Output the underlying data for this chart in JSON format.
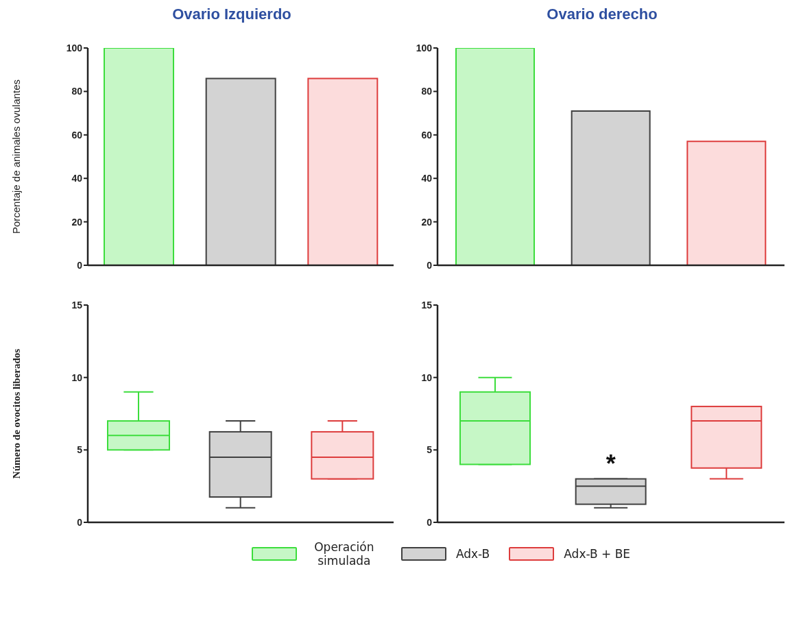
{
  "chart_data": [
    {
      "type": "bar",
      "title": "Ovario Izquierdo",
      "ylabel": "Porcentaje de animales ovulantes",
      "categories": [
        null,
        null,
        null
      ],
      "values": [
        100,
        86,
        86
      ],
      "colors": [
        "#c6f7c6",
        "#d3d3d3",
        "#fcdcdc"
      ],
      "ylim": [
        0,
        100
      ],
      "yticks": [
        0,
        20,
        40,
        60,
        80,
        100
      ],
      "grid": false
    },
    {
      "type": "bar",
      "title": "Ovario derecho",
      "categories": [
        null,
        null,
        null
      ],
      "values": [
        100,
        71,
        57
      ],
      "colors": [
        "#c6f7c6",
        "#d3d3d3",
        "#fcdcdc"
      ],
      "ylim": [
        0,
        100
      ],
      "yticks": [
        0,
        20,
        40,
        60,
        80,
        100
      ],
      "grid": false
    },
    {
      "type": "box",
      "ylabel": "Número de ovocitos liberados",
      "categories": [
        null,
        null,
        null
      ],
      "ylim": [
        0,
        15
      ],
      "yticks": [
        0,
        5,
        10,
        15
      ],
      "grid": false,
      "legend": "bottom",
      "series": [
        {
          "name": "Operación simulada",
          "color": "#c6f7c6",
          "boxes": [
            {
              "low": 5,
              "q1": 5,
              "median": 6,
              "q3": 7,
              "high": 9
            },
            null,
            null
          ]
        },
        {
          "name": "Adx-B",
          "color": "#d3d3d3",
          "boxes": [
            null,
            {
              "low": 1,
              "q1": 1.75,
              "median": 4.5,
              "q3": 6.25,
              "high": 7
            },
            null
          ]
        },
        {
          "name": "Adx-B + BE",
          "color": "#fcdcdc",
          "boxes": [
            null,
            null,
            {
              "low": 3,
              "q1": 3,
              "median": 4.5,
              "q3": 6.25,
              "high": 7
            }
          ]
        }
      ]
    },
    {
      "type": "box",
      "categories": [
        null,
        null,
        null
      ],
      "ylim": [
        0,
        15
      ],
      "yticks": [
        0,
        5,
        10,
        15
      ],
      "grid": false,
      "annotations": [
        "*"
      ],
      "series": [
        {
          "color": "#c6f7c6",
          "boxes": [
            {
              "low": 4,
              "q1": 4,
              "median": 7,
              "q3": 9,
              "high": 10
            },
            null,
            null
          ]
        },
        {
          "color": "#d3d3d3",
          "boxes": [
            null,
            {
              "low": 1,
              "q1": 1.25,
              "median": 2.5,
              "q3": 3,
              "high": 3
            },
            null
          ]
        },
        {
          "color": "#fcdcdc",
          "boxes": [
            null,
            null,
            {
              "low": 3,
              "q1": 3.75,
              "median": 7,
              "q3": 8,
              "high": 8
            }
          ]
        }
      ]
    }
  ]
}
